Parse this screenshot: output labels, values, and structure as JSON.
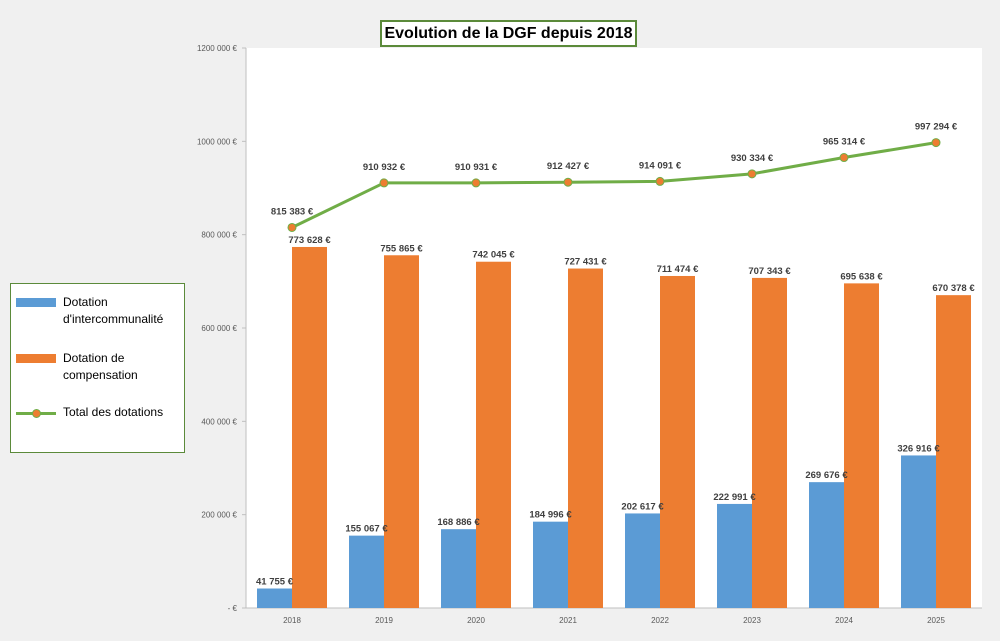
{
  "chart_data": {
    "type": "bar",
    "title": "Evolution de la DGF depuis 2018",
    "categories": [
      "2018",
      "2019",
      "2020",
      "2021",
      "2022",
      "2023",
      "2024",
      "2025"
    ],
    "ylim": [
      0,
      1200000
    ],
    "y_ticks": [
      0,
      200000,
      400000,
      600000,
      800000,
      1000000,
      1200000
    ],
    "y_tick_labels": [
      "-  €",
      "200 000 €",
      "400 000 €",
      "600 000 €",
      "800 000 €",
      "1000 000 €",
      "1200 000 €"
    ],
    "legend_placement": "left",
    "grid": false,
    "series": [
      {
        "name": "Dotation d'intercommunalité",
        "type": "bar",
        "color": "#5b9bd5",
        "values": [
          41755,
          155067,
          168886,
          184996,
          202617,
          222991,
          269676,
          326916
        ],
        "labels": [
          "41 755 €",
          "155 067 €",
          "168 886 €",
          "184 996 €",
          "202 617 €",
          "222 991 €",
          "269 676 €",
          "326 916 €"
        ]
      },
      {
        "name": "Dotation de compensation",
        "type": "bar",
        "color": "#ed7d31",
        "values": [
          773628,
          755865,
          742045,
          727431,
          711474,
          707343,
          695638,
          670378
        ],
        "labels": [
          "773 628 €",
          "755 865 €",
          "742 045 €",
          "727 431 €",
          "711 474 €",
          "707 343 €",
          "695 638 €",
          "670 378 €"
        ]
      },
      {
        "name": "Total des dotations",
        "type": "line",
        "color": "#70ad47",
        "marker_color": "#ed7d31",
        "values": [
          815383,
          910932,
          910931,
          912427,
          914091,
          930334,
          965314,
          997294
        ],
        "labels": [
          "815 383 €",
          "910 932 €",
          "910 931 €",
          "912 427 €",
          "914 091 €",
          "930 334 €",
          "965 314 €",
          "997 294 €"
        ]
      }
    ]
  }
}
